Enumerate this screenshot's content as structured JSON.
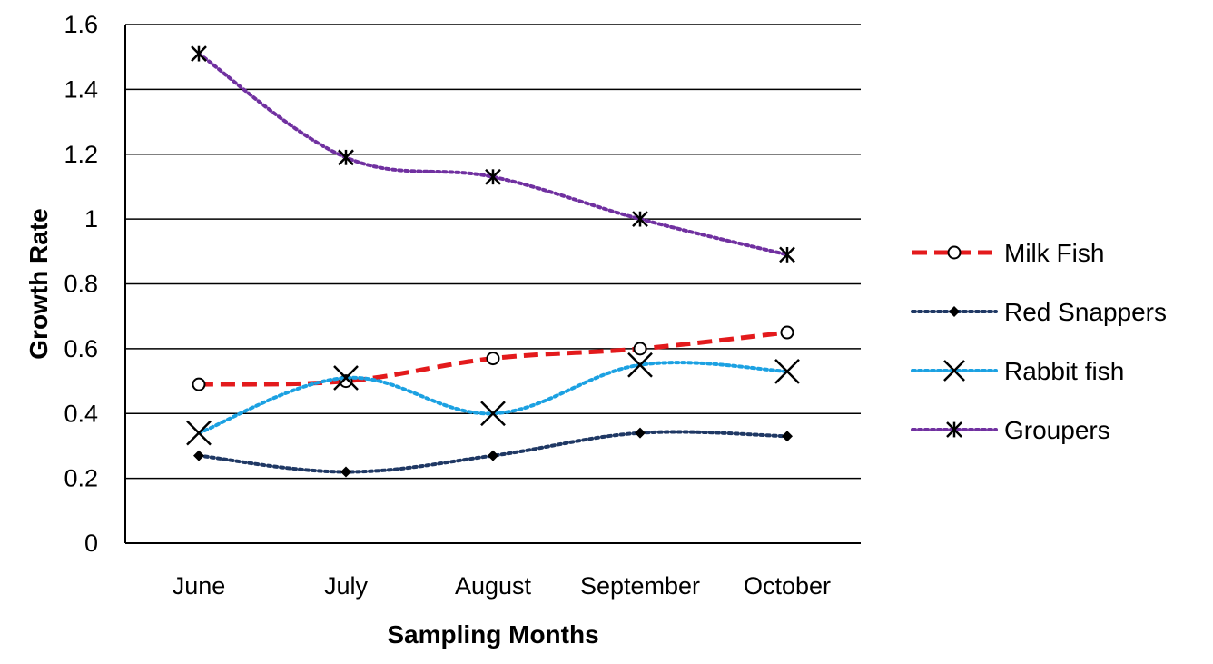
{
  "chart_data": {
    "type": "line",
    "title": "",
    "xlabel": "Sampling Months",
    "ylabel": "Growth Rate",
    "categories": [
      "June",
      "July",
      "August",
      "September",
      "October"
    ],
    "ylim": [
      0,
      1.6
    ],
    "yticks": [
      0,
      0.2,
      0.4,
      0.6,
      0.8,
      1,
      1.2,
      1.4,
      1.6
    ],
    "ytick_labels": [
      "0",
      "0.2",
      "0.4",
      "0.6",
      "0.8",
      "1",
      "1.2",
      "1.4",
      "1.6"
    ],
    "grid": "horizontal",
    "legend_position": "right",
    "series": [
      {
        "name": "Milk Fish",
        "values": [
          0.49,
          0.5,
          0.57,
          0.6,
          0.65
        ],
        "color": "#e31a1c",
        "line_style": "dashed",
        "marker": "open-circle"
      },
      {
        "name": "Red Snappers",
        "values": [
          0.27,
          0.22,
          0.27,
          0.34,
          0.33
        ],
        "color": "#1f3864",
        "line_style": "dotted",
        "marker": "diamond"
      },
      {
        "name": "Rabbit fish",
        "values": [
          0.34,
          0.51,
          0.4,
          0.55,
          0.53
        ],
        "color": "#1ba1e2",
        "line_style": "dotted",
        "marker": "x"
      },
      {
        "name": "Groupers",
        "values": [
          1.51,
          1.19,
          1.13,
          1.0,
          0.89
        ],
        "color": "#7030a0",
        "line_style": "dotted",
        "marker": "asterisk"
      }
    ]
  }
}
